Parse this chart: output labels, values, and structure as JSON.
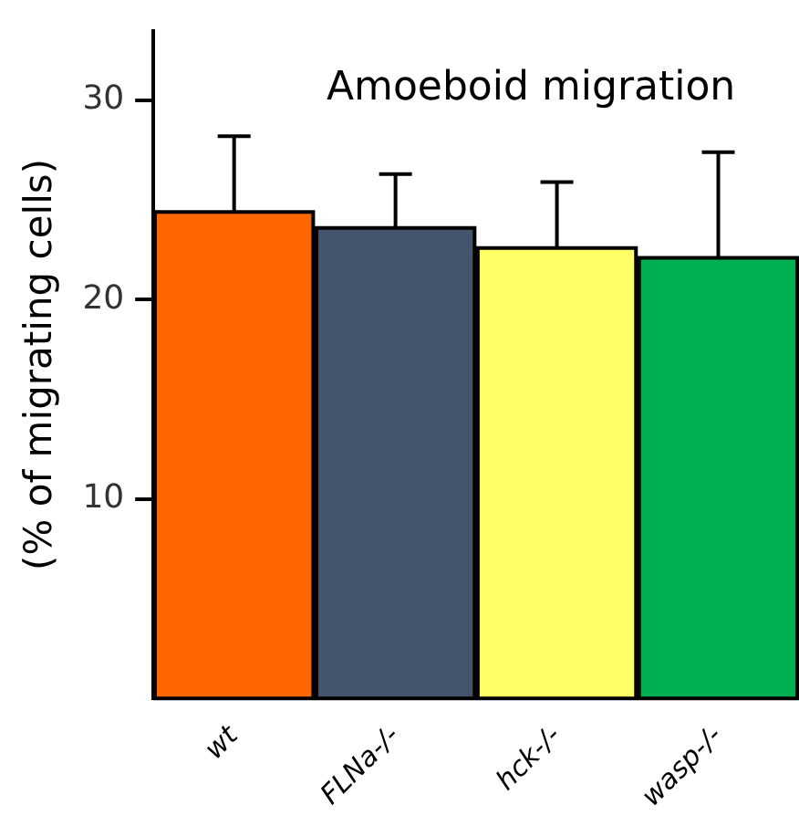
{
  "chart_data": {
    "type": "bar",
    "title": "Amoeboid migration",
    "ylabel": "(% of migrating cells)",
    "categories": [
      "wt",
      "FLNa-/-",
      "hck-/-",
      "wasp-/-"
    ],
    "values": [
      24.4,
      23.6,
      22.6,
      22.1
    ],
    "colors": [
      "#ff6600",
      "#44546a",
      "#ffff66",
      "#00b050"
    ],
    "errors": [
      [
        24.4,
        28.2
      ],
      [
        23.6,
        26.3
      ],
      [
        22.6,
        25.9
      ],
      [
        22.1,
        27.4
      ]
    ],
    "ylim": [
      0,
      33.5
    ],
    "yticks": [
      10,
      20,
      30
    ],
    "grid": false,
    "legend": false
  }
}
